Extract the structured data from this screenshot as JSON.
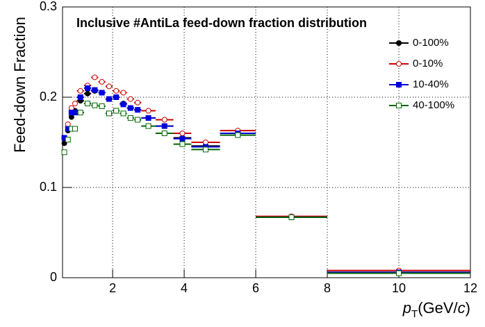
{
  "chart_data": {
    "type": "scatter",
    "title": "Inclusive #AntiLa feed-down fraction distribution",
    "y_label": "Feed-down Fraction",
    "x_label_parts": [
      "p",
      "T",
      "(GeV/",
      "c",
      ")"
    ],
    "x": [
      0.65,
      0.75,
      0.85,
      0.95,
      1.1,
      1.3,
      1.5,
      1.7,
      1.9,
      2.1,
      2.3,
      2.5,
      2.7,
      3.0,
      3.45,
      3.95,
      4.6,
      5.5,
      7,
      10
    ],
    "xerr": [
      0.05,
      0.05,
      0.05,
      0.05,
      0.1,
      0.1,
      0.1,
      0.1,
      0.1,
      0.1,
      0.1,
      0.1,
      0.1,
      0.2,
      0.25,
      0.25,
      0.4,
      0.5,
      1,
      2
    ],
    "series": [
      {
        "name": "0-100%",
        "color": "#000000",
        "marker": "filled-circle",
        "values": [
          0.149,
          0.163,
          0.178,
          0.185,
          0.196,
          0.204,
          0.207,
          0.205,
          0.198,
          0.2,
          0.193,
          0.188,
          0.186,
          0.177,
          0.168,
          0.155,
          0.146,
          0.16,
          0.067,
          0.006
        ]
      },
      {
        "name": "0-10%",
        "color": "#cc0000",
        "marker": "open-circle",
        "values": [
          0.155,
          0.17,
          0.188,
          0.193,
          0.207,
          0.213,
          0.222,
          0.217,
          0.212,
          0.207,
          0.205,
          0.198,
          0.194,
          0.185,
          0.175,
          0.16,
          0.15,
          0.163,
          0.068,
          0.008
        ]
      },
      {
        "name": "10-40%",
        "color": "#0000dd",
        "marker": "filled-square",
        "values": [
          0.155,
          0.165,
          0.183,
          0.183,
          0.2,
          0.21,
          0.208,
          0.205,
          0.198,
          0.2,
          0.192,
          0.188,
          0.186,
          0.177,
          0.168,
          0.154,
          0.145,
          0.16,
          0.067,
          0.006
        ]
      },
      {
        "name": "40-100%",
        "color": "#006600",
        "marker": "open-square",
        "values": [
          0.139,
          0.153,
          0.165,
          0.165,
          0.183,
          0.193,
          0.191,
          0.19,
          0.182,
          0.185,
          0.182,
          0.177,
          0.175,
          0.168,
          0.16,
          0.148,
          0.142,
          0.158,
          0.067,
          0.005
        ]
      }
    ],
    "xlim": [
      0.6,
      12
    ],
    "ylim": [
      0,
      0.3
    ],
    "xticks": [
      2,
      4,
      6,
      8,
      10,
      12
    ],
    "yticks": [
      0,
      0.1,
      0.2,
      0.3
    ],
    "grid": true,
    "legend": "top-right"
  }
}
